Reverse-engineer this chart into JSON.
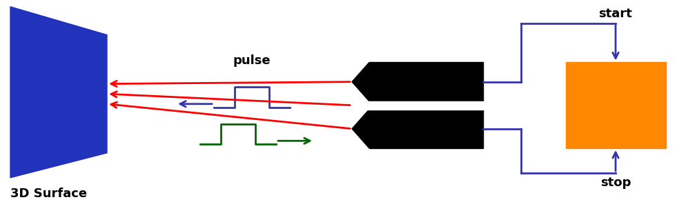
{
  "bg_color": "#ffffff",
  "surface_color": "#2233bb",
  "orange_color": "#ff8800",
  "loop_color": "#3333aa",
  "red_color": "#ff0000",
  "blue_pulse_color": "#3333aa",
  "green_pulse_color": "#006600",
  "text_3d": "3D Surface",
  "text_pulse": "pulse",
  "text_start": "start",
  "text_stop": "stop",
  "font_size": 13,
  "lw_loop": 2.0,
  "lw_pulse": 2.0,
  "lw_arrow": 2.0
}
